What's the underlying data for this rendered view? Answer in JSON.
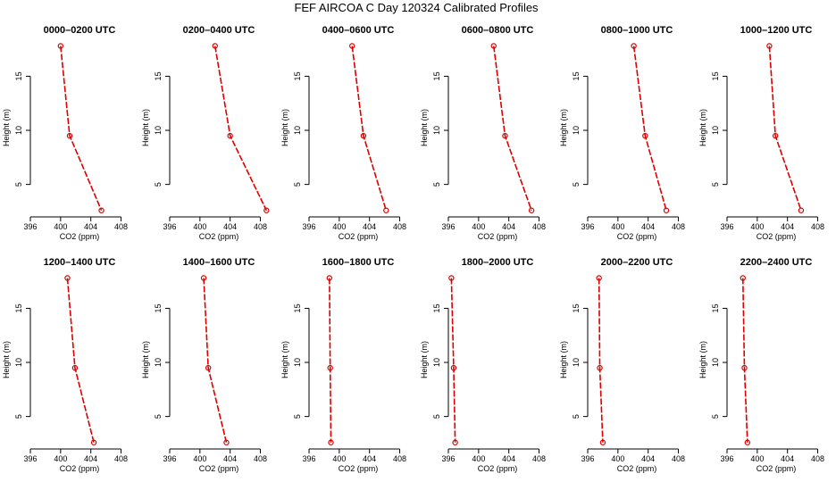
{
  "title": "FEF AIRCOA C  Day 120324  Calibrated Profiles",
  "colors": {
    "line": "#dd0000",
    "axis": "#000000",
    "background": "#ffffff"
  },
  "chart_data": [
    {
      "type": "line",
      "title": "0000–0200 UTC",
      "xlabel": "CO2 (ppm)",
      "ylabel": "Height (m)",
      "xlim": [
        396,
        409
      ],
      "ylim": [
        2,
        18.5
      ],
      "xticks": [
        396,
        400,
        404,
        408
      ],
      "yticks": [
        5,
        10,
        15
      ],
      "x": [
        400.0,
        401.2,
        405.4
      ],
      "y": [
        17.8,
        9.5,
        2.6
      ]
    },
    {
      "type": "line",
      "title": "0200–0400 UTC",
      "xlabel": "CO2 (ppm)",
      "ylabel": "Height (m)",
      "xlim": [
        396,
        409
      ],
      "ylim": [
        2,
        18.5
      ],
      "xticks": [
        396,
        400,
        404,
        408
      ],
      "yticks": [
        5,
        10,
        15
      ],
      "x": [
        402.0,
        404.0,
        408.8
      ],
      "y": [
        17.8,
        9.5,
        2.6
      ]
    },
    {
      "type": "line",
      "title": "0400–0600 UTC",
      "xlabel": "CO2 (ppm)",
      "ylabel": "Height (m)",
      "xlim": [
        396,
        409
      ],
      "ylim": [
        2,
        18.5
      ],
      "xticks": [
        396,
        400,
        404,
        408
      ],
      "yticks": [
        5,
        10,
        15
      ],
      "x": [
        401.7,
        403.2,
        406.2
      ],
      "y": [
        17.8,
        9.5,
        2.6
      ]
    },
    {
      "type": "line",
      "title": "0600–0800 UTC",
      "xlabel": "CO2 (ppm)",
      "ylabel": "Height (m)",
      "xlim": [
        396,
        409
      ],
      "ylim": [
        2,
        18.5
      ],
      "xticks": [
        396,
        400,
        404,
        408
      ],
      "yticks": [
        5,
        10,
        15
      ],
      "x": [
        402.0,
        403.5,
        407.0
      ],
      "y": [
        17.8,
        9.5,
        2.6
      ]
    },
    {
      "type": "line",
      "title": "0800–1000 UTC",
      "xlabel": "CO2 (ppm)",
      "ylabel": "Height (m)",
      "xlim": [
        396,
        409
      ],
      "ylim": [
        2,
        18.5
      ],
      "xticks": [
        396,
        400,
        404,
        408
      ],
      "yticks": [
        5,
        10,
        15
      ],
      "x": [
        402.1,
        403.6,
        406.4
      ],
      "y": [
        17.8,
        9.5,
        2.6
      ]
    },
    {
      "type": "line",
      "title": "1000–1200 UTC",
      "xlabel": "CO2 (ppm)",
      "ylabel": "Height (m)",
      "xlim": [
        396,
        409
      ],
      "ylim": [
        2,
        18.5
      ],
      "xticks": [
        396,
        400,
        404,
        408
      ],
      "yticks": [
        5,
        10,
        15
      ],
      "x": [
        401.6,
        402.4,
        405.8
      ],
      "y": [
        17.8,
        9.5,
        2.6
      ]
    },
    {
      "type": "line",
      "title": "1200–1400 UTC",
      "xlabel": "CO2 (ppm)",
      "ylabel": "Height (m)",
      "xlim": [
        396,
        409
      ],
      "ylim": [
        2,
        18.5
      ],
      "xticks": [
        396,
        400,
        404,
        408
      ],
      "yticks": [
        5,
        10,
        15
      ],
      "x": [
        400.9,
        401.9,
        404.4
      ],
      "y": [
        17.8,
        9.5,
        2.6
      ]
    },
    {
      "type": "line",
      "title": "1400–1600 UTC",
      "xlabel": "CO2 (ppm)",
      "ylabel": "Height (m)",
      "xlim": [
        396,
        409
      ],
      "ylim": [
        2,
        18.5
      ],
      "xticks": [
        396,
        400,
        404,
        408
      ],
      "yticks": [
        5,
        10,
        15
      ],
      "x": [
        400.5,
        401.1,
        403.5
      ],
      "y": [
        17.8,
        9.5,
        2.6
      ]
    },
    {
      "type": "line",
      "title": "1600–1800 UTC",
      "xlabel": "CO2 (ppm)",
      "ylabel": "Height (m)",
      "xlim": [
        396,
        409
      ],
      "ylim": [
        2,
        18.5
      ],
      "xticks": [
        396,
        400,
        404,
        408
      ],
      "yticks": [
        5,
        10,
        15
      ],
      "x": [
        398.7,
        398.8,
        398.9
      ],
      "y": [
        17.8,
        9.5,
        2.6
      ]
    },
    {
      "type": "line",
      "title": "1800–2000 UTC",
      "xlabel": "CO2 (ppm)",
      "ylabel": "Height (m)",
      "xlim": [
        396,
        409
      ],
      "ylim": [
        2,
        18.5
      ],
      "xticks": [
        396,
        400,
        404,
        408
      ],
      "yticks": [
        5,
        10,
        15
      ],
      "x": [
        396.4,
        396.7,
        396.9
      ],
      "y": [
        17.8,
        9.5,
        2.6
      ]
    },
    {
      "type": "line",
      "title": "2000–2200 UTC",
      "xlabel": "CO2 (ppm)",
      "ylabel": "Height (m)",
      "xlim": [
        396,
        409
      ],
      "ylim": [
        2,
        18.5
      ],
      "xticks": [
        396,
        400,
        404,
        408
      ],
      "yticks": [
        5,
        10,
        15
      ],
      "x": [
        397.5,
        397.6,
        398.0
      ],
      "y": [
        17.8,
        9.5,
        2.6
      ]
    },
    {
      "type": "line",
      "title": "2200–2400 UTC",
      "xlabel": "CO2 (ppm)",
      "ylabel": "Height (m)",
      "xlim": [
        396,
        409
      ],
      "ylim": [
        2,
        18.5
      ],
      "xticks": [
        396,
        400,
        404,
        408
      ],
      "yticks": [
        5,
        10,
        15
      ],
      "x": [
        398.1,
        398.3,
        398.7
      ],
      "y": [
        17.8,
        9.5,
        2.6
      ]
    }
  ]
}
